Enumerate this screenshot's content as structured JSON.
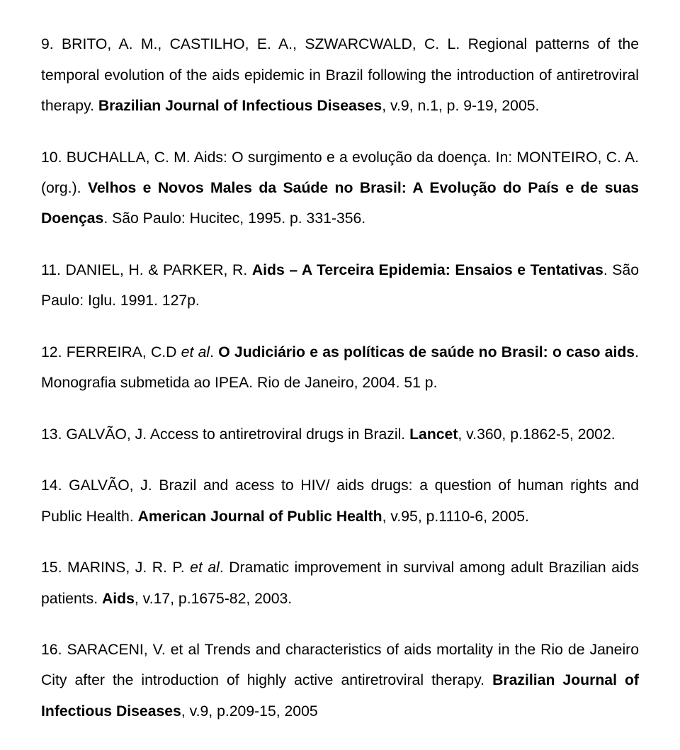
{
  "refs": [
    {
      "parts": [
        {
          "t": "9. BRITO, A. M., CASTILHO, E. A., SZWARCWALD, C. L. Regional patterns of the temporal evolution of the aids epidemic in Brazil following the introduction of antiretroviral therapy. "
        },
        {
          "t": "Brazilian Journal of Infectious Diseases",
          "b": true
        },
        {
          "t": ", v.9, n.1, p. 9-19, 2005."
        }
      ]
    },
    {
      "parts": [
        {
          "t": "10. BUCHALLA, C. M. Aids: O surgimento e a evolução da doença. In: MONTEIRO, C. A. (org.). "
        },
        {
          "t": "Velhos e Novos Males da Saúde no Brasil: A Evolução do País e de suas Doenças",
          "b": true
        },
        {
          "t": ". São Paulo: Hucitec, 1995. p. 331-356."
        }
      ]
    },
    {
      "parts": [
        {
          "t": "11. DANIEL, H. & PARKER, R. "
        },
        {
          "t": "Aids – A Terceira Epidemia: Ensaios e Tentativas",
          "b": true
        },
        {
          "t": ". São Paulo: Iglu. 1991. 127p."
        }
      ]
    },
    {
      "parts": [
        {
          "t": "12. FERREIRA, C.D "
        },
        {
          "t": "et al",
          "i": true
        },
        {
          "t": ". "
        },
        {
          "t": "O Judiciário e as políticas de saúde no Brasil: o caso aids",
          "b": true
        },
        {
          "t": ". Monografia submetida ao IPEA. Rio de Janeiro, 2004. 51 p."
        }
      ]
    },
    {
      "parts": [
        {
          "t": "13. GALVÃO, J. Access to antiretroviral drugs in Brazil. "
        },
        {
          "t": "Lancet",
          "b": true
        },
        {
          "t": ", v.360, p.1862-5, 2002."
        }
      ]
    },
    {
      "parts": [
        {
          "t": "14. GALVÃO, J. Brazil and acess to HIV/ aids drugs: a question of human rights and Public Health. "
        },
        {
          "t": "American Journal of Public Health",
          "b": true
        },
        {
          "t": ", v.95, p.1110-6, 2005."
        }
      ]
    },
    {
      "parts": [
        {
          "t": "15. MARINS, J. R. P. "
        },
        {
          "t": "et al",
          "i": true
        },
        {
          "t": ". Dramatic improvement in survival among adult Brazilian aids patients. "
        },
        {
          "t": "Aids",
          "b": true
        },
        {
          "t": ", v.17, p.1675-82, 2003."
        }
      ]
    },
    {
      "parts": [
        {
          "t": "16. SARACENI, V. et al Trends and characteristics of aids mortality in the Rio de Janeiro City after the introduction of highly active antiretroviral therapy. "
        },
        {
          "t": "Brazilian Journal of Infectious Diseases",
          "b": true
        },
        {
          "t": ", v.9, p.209-15, 2005"
        }
      ]
    }
  ]
}
